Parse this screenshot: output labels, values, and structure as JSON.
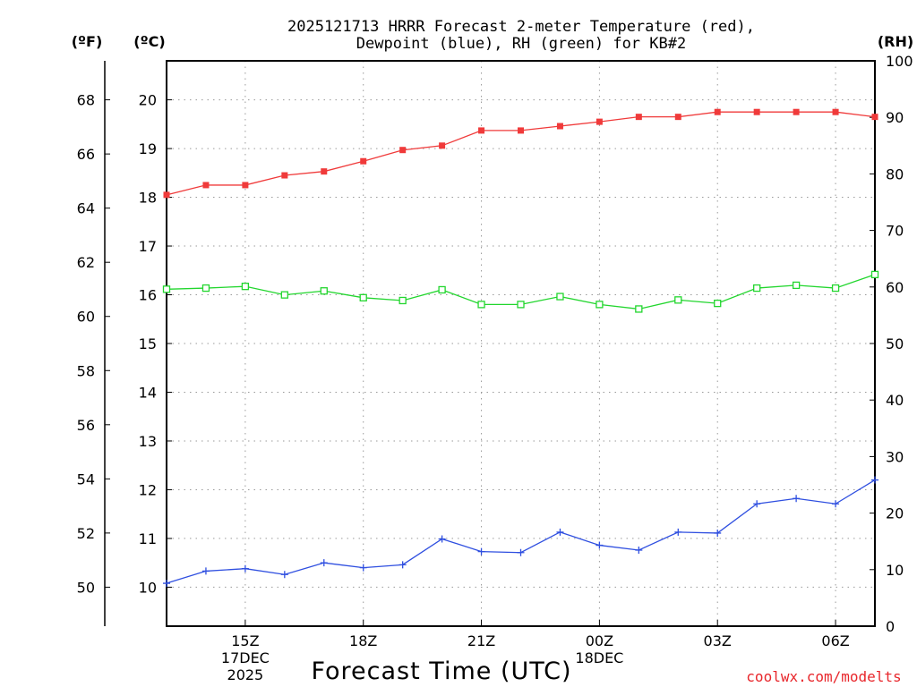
{
  "chart_data": {
    "type": "line",
    "title": [
      "2025121713 HRRR Forecast 2-meter Temperature (red),",
      "Dewpoint (blue), RH (green) for KB#2"
    ],
    "xlabel": "Forecast Time (UTC)",
    "credit": "coolwx.com/modelts",
    "units": {
      "fahrenheit": "(ºF)",
      "celsius": "(ºC)",
      "rh": "(RH)"
    },
    "x_hours_from_13z": [
      0,
      1,
      2,
      3,
      4,
      5,
      6,
      7,
      8,
      9,
      10,
      11,
      12,
      13,
      14,
      15,
      16,
      17,
      18
    ],
    "x_range": [
      0,
      18
    ],
    "x_ticks": [
      {
        "hour": 2,
        "lines": [
          "15Z",
          "17DEC",
          "2025"
        ]
      },
      {
        "hour": 5,
        "lines": [
          "18Z"
        ]
      },
      {
        "hour": 8,
        "lines": [
          "21Z"
        ]
      },
      {
        "hour": 11,
        "lines": [
          "00Z",
          "18DEC"
        ]
      },
      {
        "hour": 14,
        "lines": [
          "03Z"
        ]
      },
      {
        "hour": 17,
        "lines": [
          "06Z"
        ]
      }
    ],
    "celsius_axis": {
      "range": [
        9.2,
        20.8
      ],
      "ticks": [
        "10",
        "11",
        "12",
        "13",
        "14",
        "15",
        "16",
        "17",
        "18",
        "19",
        "20"
      ]
    },
    "fahrenheit_axis": {
      "ticks": [
        "50",
        "52",
        "54",
        "56",
        "58",
        "60",
        "62",
        "64",
        "66",
        "68"
      ]
    },
    "rh_axis": {
      "range": [
        0,
        100
      ],
      "ticks": [
        "0",
        "10",
        "20",
        "30",
        "40",
        "50",
        "60",
        "70",
        "80",
        "90",
        "100"
      ]
    },
    "series": [
      {
        "name": "Temperature",
        "axis": "celsius",
        "color": "#f03a3a",
        "marker": "filled-square",
        "values": [
          18.05,
          18.25,
          18.25,
          18.45,
          18.53,
          18.74,
          18.97,
          19.06,
          19.37,
          19.37,
          19.46,
          19.55,
          19.65,
          19.65,
          19.75,
          19.75,
          19.75,
          19.75,
          19.65
        ]
      },
      {
        "name": "Dewpoint",
        "axis": "celsius",
        "color": "#2f4fe0",
        "marker": "plus",
        "values": [
          10.08,
          10.33,
          10.38,
          10.26,
          10.5,
          10.4,
          10.46,
          10.99,
          10.73,
          10.71,
          11.13,
          10.86,
          10.76,
          11.13,
          11.11,
          11.71,
          11.82,
          11.71,
          12.2
        ]
      },
      {
        "name": "RH",
        "axis": "rh",
        "color": "#22d62e",
        "marker": "open-square",
        "values": [
          59.6,
          59.8,
          60.1,
          58.6,
          59.3,
          58.1,
          57.6,
          59.5,
          56.9,
          56.9,
          58.3,
          56.9,
          56.1,
          57.7,
          57.1,
          59.8,
          60.3,
          59.8,
          62.2
        ]
      }
    ]
  }
}
